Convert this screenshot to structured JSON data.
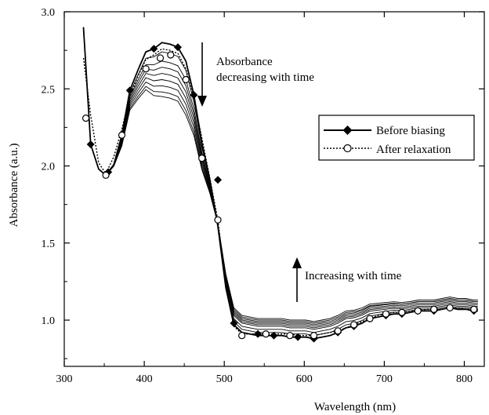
{
  "chart_data": {
    "type": "line",
    "title": "",
    "xlabel": "Wavelength (nm)",
    "ylabel": "Absorbance (a.u.)",
    "xlim": [
      300,
      825
    ],
    "ylim": [
      0.7,
      3.0
    ],
    "xticks": [
      300,
      400,
      500,
      600,
      700,
      800
    ],
    "yticks": [
      1.0,
      1.5,
      2.0,
      2.5,
      3.0
    ],
    "xtick_labels": [
      "300",
      "400",
      "500",
      "600",
      "700",
      "800"
    ],
    "ytick_labels": [
      "1.0",
      "1.5",
      "2.0",
      "2.5",
      "3.0"
    ],
    "grid": false,
    "legend_position": "right",
    "series": [
      {
        "name": "Before biasing",
        "marker": "filled-diamond",
        "line": "solid",
        "x": [
          324,
          333,
          343,
          352,
          362,
          372,
          382,
          392,
          402,
          412,
          422,
          432,
          442,
          452,
          462,
          472,
          482,
          492,
          502,
          512,
          522,
          532,
          542,
          552,
          562,
          572,
          582,
          592,
          602,
          612,
          622,
          632,
          642,
          652,
          662,
          672,
          682,
          692,
          702,
          712,
          722,
          732,
          742,
          752,
          762,
          772,
          782,
          792,
          802,
          812,
          817
        ],
        "y": [
          2.9,
          2.14,
          1.98,
          1.94,
          2.01,
          2.2,
          2.49,
          2.62,
          2.74,
          2.76,
          2.8,
          2.79,
          2.77,
          2.68,
          2.46,
          2.15,
          1.91,
          1.61,
          1.21,
          0.97,
          0.92,
          0.91,
          0.9,
          0.9,
          0.9,
          0.9,
          0.89,
          0.89,
          0.89,
          0.88,
          0.89,
          0.9,
          0.92,
          0.95,
          0.96,
          0.98,
          1.01,
          1.02,
          1.03,
          1.04,
          1.04,
          1.05,
          1.06,
          1.06,
          1.06,
          1.07,
          1.08,
          1.07,
          1.07,
          1.06,
          1.06
        ],
        "marker_x": [
          333,
          355,
          382,
          412,
          442,
          462,
          492,
          512,
          542,
          562,
          592,
          612,
          642,
          662,
          682,
          702,
          722,
          742,
          762,
          782,
          812
        ],
        "marker_y": [
          2.14,
          1.96,
          2.49,
          2.76,
          2.77,
          2.46,
          1.91,
          0.98,
          0.91,
          0.9,
          0.89,
          0.88,
          0.92,
          0.96,
          1.01,
          1.03,
          1.04,
          1.06,
          1.06,
          1.08,
          1.06
        ]
      },
      {
        "name": "After relaxation",
        "marker": "open-circle",
        "line": "dotted",
        "x": [
          324,
          333,
          343,
          352,
          362,
          372,
          382,
          392,
          402,
          412,
          422,
          432,
          442,
          452,
          462,
          472,
          482,
          492,
          502,
          512,
          522,
          532,
          542,
          552,
          562,
          572,
          582,
          592,
          602,
          612,
          622,
          632,
          642,
          652,
          662,
          672,
          682,
          692,
          702,
          712,
          722,
          732,
          742,
          752,
          762,
          772,
          782,
          792,
          802,
          812,
          817
        ],
        "y": [
          2.7,
          2.33,
          2.02,
          1.95,
          2.06,
          2.24,
          2.45,
          2.58,
          2.69,
          2.72,
          2.76,
          2.75,
          2.73,
          2.63,
          2.43,
          2.18,
          1.92,
          1.65,
          1.22,
          0.96,
          0.91,
          0.91,
          0.91,
          0.91,
          0.91,
          0.91,
          0.91,
          0.9,
          0.9,
          0.9,
          0.91,
          0.92,
          0.93,
          0.95,
          0.97,
          0.99,
          1.01,
          1.03,
          1.04,
          1.05,
          1.05,
          1.06,
          1.06,
          1.07,
          1.07,
          1.07,
          1.08,
          1.08,
          1.07,
          1.07,
          1.07
        ],
        "marker_x": [
          327,
          352,
          372,
          402,
          420,
          433,
          452,
          472,
          492,
          522,
          552,
          582,
          612,
          642,
          662,
          682,
          702,
          722,
          742,
          762,
          782,
          812
        ],
        "marker_y": [
          2.31,
          1.94,
          2.2,
          2.63,
          2.7,
          2.72,
          2.56,
          2.05,
          1.65,
          0.9,
          0.91,
          0.9,
          0.9,
          0.93,
          0.97,
          1.01,
          1.04,
          1.05,
          1.06,
          1.07,
          1.08,
          1.07
        ]
      }
    ],
    "intermediate_curves": {
      "description_visible": false,
      "peak_values_at_430nm": [
        2.74,
        2.68,
        2.64,
        2.6,
        2.56,
        2.52,
        2.48,
        2.45
      ],
      "plateau_values_at_600nm": [
        0.91,
        0.93,
        0.95,
        0.96,
        0.97,
        0.98,
        0.99,
        1.0
      ],
      "red_values_at_760nm": [
        1.07,
        1.08,
        1.09,
        1.1,
        1.11,
        1.12,
        1.12,
        1.13
      ]
    },
    "annotations": [
      {
        "text_line1": "Absorbance",
        "text_line2": "decreasing with time",
        "arrow": "down",
        "x": 457,
        "y": 2.7
      },
      {
        "text_line1": "Increasing with time",
        "arrow": "up",
        "x": 600,
        "y": 1.25
      }
    ],
    "legend": [
      {
        "label": "Before biasing",
        "style": "solid-diamond"
      },
      {
        "label": "After relaxation",
        "style": "dotted-circle"
      }
    ]
  }
}
